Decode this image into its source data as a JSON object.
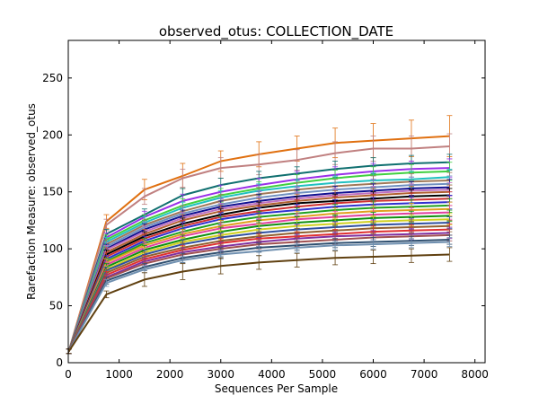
{
  "chart_data": {
    "type": "line",
    "title": "observed_otus: COLLECTION_DATE",
    "xlabel": "Sequences Per Sample",
    "ylabel": "Rarefaction Measure: observed_otus",
    "xlim": [
      0,
      8200
    ],
    "ylim": [
      0,
      283
    ],
    "xticks": [
      0,
      1000,
      2000,
      3000,
      4000,
      5000,
      6000,
      7000,
      8000
    ],
    "yticks": [
      0,
      50,
      100,
      150,
      200,
      250
    ],
    "grid": false,
    "legend": "none",
    "error_bars": true,
    "x": [
      10,
      750,
      1500,
      2250,
      3000,
      3750,
      4500,
      5250,
      6000,
      6750,
      7500
    ],
    "series": [
      {
        "color": "#e07010",
        "values": [
          10,
          124,
          152,
          164,
          177,
          183,
          188,
          193,
          195,
          197,
          199
        ],
        "errors": [
          2,
          6,
          9,
          11,
          9,
          11,
          11,
          13,
          15,
          16,
          18
        ]
      },
      {
        "color": "#c08080",
        "values": [
          10,
          121,
          146,
          162,
          171,
          174,
          178,
          184,
          188,
          188,
          190
        ],
        "errors": [
          2,
          5,
          7,
          8,
          9,
          9,
          9,
          10,
          11,
          11,
          11
        ]
      },
      {
        "color": "#107070",
        "values": [
          10,
          113,
          130,
          147,
          156,
          162,
          166,
          170,
          173,
          175,
          176
        ],
        "errors": [
          2,
          4,
          5,
          6,
          6,
          6,
          6,
          7,
          7,
          7,
          7
        ]
      },
      {
        "color": "#9a30e8",
        "values": [
          10,
          110,
          128,
          142,
          150,
          156,
          161,
          165,
          168,
          170,
          171
        ],
        "errors": [
          2,
          4,
          5,
          6,
          6,
          6,
          7,
          7,
          7,
          7,
          8
        ]
      },
      {
        "color": "#40d040",
        "values": [
          10,
          108,
          125,
          138,
          147,
          153,
          158,
          162,
          165,
          167,
          168
        ],
        "errors": [
          2,
          4,
          5,
          6,
          6,
          6,
          7,
          7,
          7,
          7,
          8
        ]
      },
      {
        "color": "#20c0c0",
        "values": [
          10,
          106,
          123,
          136,
          145,
          151,
          155,
          158,
          160,
          161,
          163
        ],
        "errors": [
          2,
          4,
          5,
          5,
          6,
          6,
          6,
          6,
          7,
          7,
          7
        ]
      },
      {
        "color": "#a07858",
        "values": [
          10,
          104,
          121,
          133,
          142,
          148,
          152,
          155,
          157,
          159,
          160
        ],
        "errors": [
          2,
          4,
          5,
          5,
          6,
          6,
          6,
          6,
          7,
          7,
          7
        ]
      },
      {
        "color": "#7090c0",
        "values": [
          10,
          102,
          119,
          131,
          139,
          145,
          149,
          152,
          154,
          156,
          157
        ],
        "errors": [
          2,
          4,
          5,
          5,
          6,
          6,
          6,
          6,
          6,
          7,
          7
        ]
      },
      {
        "color": "#101090",
        "values": [
          10,
          100,
          117,
          129,
          137,
          142,
          146,
          149,
          151,
          153,
          154
        ],
        "errors": [
          2,
          4,
          5,
          5,
          5,
          6,
          6,
          6,
          6,
          6,
          7
        ]
      },
      {
        "color": "#c070c0",
        "values": [
          10,
          99,
          115,
          127,
          135,
          140,
          144,
          147,
          149,
          151,
          152
        ],
        "errors": [
          2,
          4,
          5,
          5,
          5,
          6,
          6,
          6,
          6,
          6,
          6
        ]
      },
      {
        "color": "#b06030",
        "values": [
          10,
          97,
          113,
          125,
          133,
          138,
          142,
          145,
          147,
          149,
          150
        ],
        "errors": [
          2,
          4,
          4,
          5,
          5,
          6,
          6,
          6,
          6,
          6,
          6
        ]
      },
      {
        "color": "#000000",
        "values": [
          10,
          95,
          111,
          122,
          130,
          136,
          140,
          142,
          144,
          146,
          147
        ],
        "errors": [
          2,
          4,
          4,
          5,
          5,
          5,
          6,
          6,
          6,
          6,
          6
        ]
      },
      {
        "color": "#d03030",
        "values": [
          10,
          93,
          109,
          120,
          128,
          133,
          137,
          140,
          142,
          143,
          144
        ],
        "errors": [
          2,
          4,
          4,
          5,
          5,
          5,
          6,
          6,
          6,
          6,
          6
        ]
      },
      {
        "color": "#3030d0",
        "values": [
          10,
          91,
          107,
          118,
          126,
          131,
          134,
          137,
          139,
          140,
          141
        ],
        "errors": [
          2,
          3,
          4,
          5,
          5,
          5,
          5,
          6,
          6,
          6,
          6
        ]
      },
      {
        "color": "#20a020",
        "values": [
          10,
          89,
          105,
          115,
          123,
          128,
          131,
          134,
          136,
          137,
          138
        ],
        "errors": [
          2,
          3,
          4,
          5,
          5,
          5,
          5,
          5,
          6,
          6,
          6
        ]
      },
      {
        "color": "#e0a020",
        "values": [
          10,
          88,
          103,
          113,
          120,
          125,
          128,
          131,
          133,
          134,
          135
        ],
        "errors": [
          2,
          3,
          4,
          4,
          5,
          5,
          5,
          5,
          5,
          6,
          6
        ]
      },
      {
        "color": "#e040a0",
        "values": [
          10,
          86,
          101,
          111,
          118,
          122,
          126,
          128,
          130,
          131,
          132
        ],
        "errors": [
          2,
          3,
          4,
          4,
          5,
          5,
          5,
          5,
          5,
          5,
          6
        ]
      },
      {
        "color": "#109010",
        "values": [
          10,
          84,
          99,
          108,
          115,
          120,
          123,
          125,
          127,
          128,
          129
        ],
        "errors": [
          2,
          3,
          4,
          4,
          4,
          5,
          5,
          5,
          5,
          5,
          5
        ]
      },
      {
        "color": "#d0d020",
        "values": [
          10,
          82,
          97,
          106,
          112,
          117,
          120,
          122,
          124,
          125,
          126
        ],
        "errors": [
          2,
          3,
          4,
          4,
          4,
          5,
          5,
          5,
          5,
          5,
          5
        ]
      },
      {
        "color": "#3050a0",
        "values": [
          10,
          81,
          95,
          104,
          110,
          114,
          117,
          119,
          121,
          122,
          123
        ],
        "errors": [
          2,
          3,
          4,
          4,
          4,
          4,
          5,
          5,
          5,
          5,
          5
        ]
      },
      {
        "color": "#906030",
        "values": [
          10,
          79,
          93,
          101,
          107,
          111,
          114,
          116,
          118,
          119,
          120
        ],
        "errors": [
          2,
          3,
          4,
          4,
          4,
          4,
          4,
          5,
          5,
          5,
          5
        ]
      },
      {
        "color": "#e03030",
        "values": [
          10,
          77,
          91,
          99,
          105,
          109,
          111,
          113,
          115,
          116,
          117
        ],
        "errors": [
          2,
          3,
          3,
          4,
          4,
          4,
          4,
          4,
          5,
          5,
          5
        ]
      },
      {
        "color": "#8030a0",
        "values": [
          10,
          75,
          89,
          97,
          102,
          106,
          109,
          111,
          112,
          113,
          114
        ],
        "errors": [
          2,
          3,
          3,
          4,
          4,
          4,
          4,
          4,
          4,
          5,
          5
        ]
      },
      {
        "color": "#a05050",
        "values": [
          10,
          74,
          87,
          95,
          100,
          104,
          106,
          108,
          110,
          111,
          112
        ],
        "errors": [
          2,
          3,
          3,
          4,
          4,
          4,
          4,
          4,
          4,
          4,
          5
        ]
      },
      {
        "color": "#305070",
        "values": [
          10,
          72,
          84,
          92,
          97,
          101,
          103,
          105,
          106,
          107,
          108
        ],
        "errors": [
          2,
          3,
          3,
          4,
          4,
          4,
          4,
          4,
          4,
          4,
          4
        ]
      },
      {
        "color": "#7090b0",
        "values": [
          10,
          70,
          82,
          90,
          95,
          98,
          101,
          103,
          104,
          105,
          106
        ],
        "errors": [
          2,
          3,
          3,
          3,
          4,
          4,
          4,
          4,
          4,
          4,
          4
        ]
      },
      {
        "color": "#604010",
        "values": [
          10,
          60,
          73,
          80,
          85,
          88,
          90,
          92,
          93,
          94,
          95
        ],
        "errors": [
          2,
          3,
          6,
          7,
          7,
          6,
          6,
          6,
          6,
          6,
          6
        ]
      }
    ]
  }
}
